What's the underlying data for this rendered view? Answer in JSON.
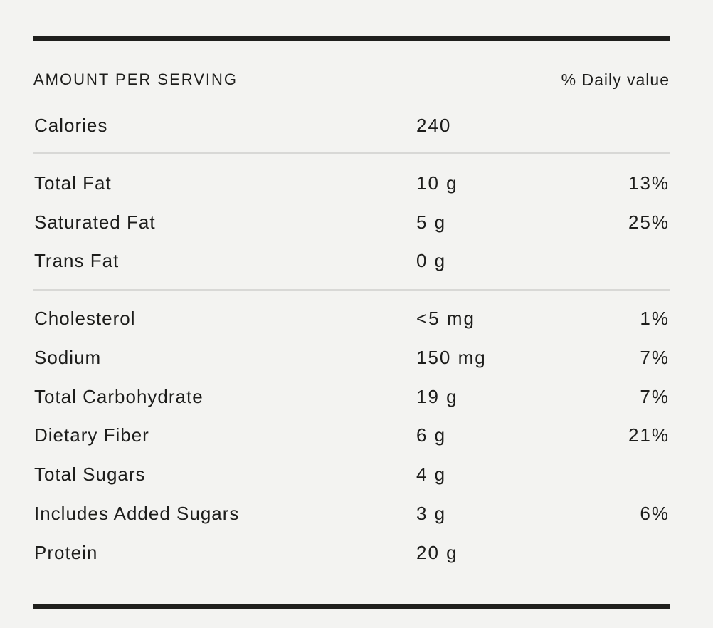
{
  "colors": {
    "background": "#f3f3f1",
    "heavy_rule": "#1f1f1d",
    "divider": "#d8d8d6",
    "text": "#1d1d1b"
  },
  "header": {
    "left": "AMOUNT PER SERVING",
    "right": "% Daily value"
  },
  "rows": [
    {
      "label": "Calories",
      "amount": "240",
      "daily_value": ""
    },
    {
      "label": "Total Fat",
      "amount": "10 g",
      "daily_value": "13%"
    },
    {
      "label": "Saturated Fat",
      "amount": "5 g",
      "daily_value": "25%"
    },
    {
      "label": "Trans Fat",
      "amount": "0 g",
      "daily_value": ""
    },
    {
      "label": "Cholesterol",
      "amount": "<5 mg",
      "daily_value": "1%"
    },
    {
      "label": "Sodium",
      "amount": "150 mg",
      "daily_value": "7%"
    },
    {
      "label": "Total Carbohydrate",
      "amount": "19 g",
      "daily_value": "7%"
    },
    {
      "label": "Dietary Fiber",
      "amount": "6 g",
      "daily_value": "21%"
    },
    {
      "label": "Total Sugars",
      "amount": "4 g",
      "daily_value": ""
    },
    {
      "label": "Includes Added Sugars",
      "amount": "3 g",
      "daily_value": "6%"
    },
    {
      "label": "Protein",
      "amount": "20 g",
      "daily_value": ""
    }
  ]
}
